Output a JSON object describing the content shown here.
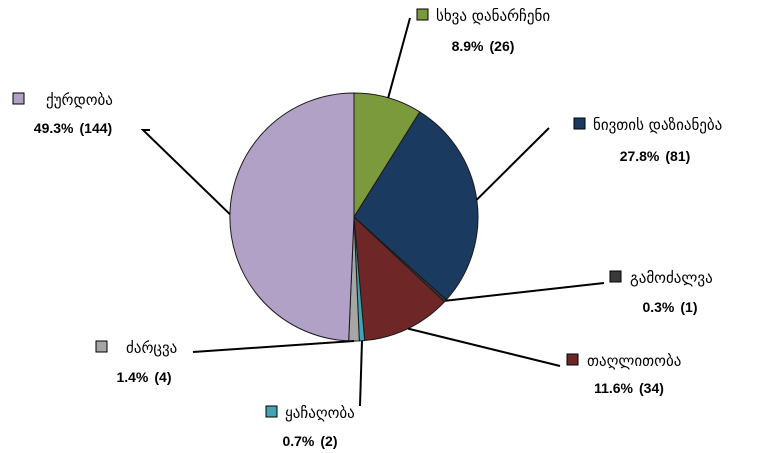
{
  "chart_data": {
    "type": "pie",
    "title": "",
    "start_angle_deg": -90,
    "direction": "clockwise",
    "slices": [
      {
        "label": "სხვა დანარჩენი",
        "percent": "8.9%",
        "count": "(26)",
        "value": 26,
        "color": "#7b9a3c"
      },
      {
        "label": "ნივთის დაზიანება",
        "percent": "27.8%",
        "count": "(81)",
        "value": 81,
        "color": "#1b3a5f"
      },
      {
        "label": "გამოძალვა",
        "percent": "0.3%",
        "count": "(1)",
        "value": 1,
        "color": "#3a3a3a"
      },
      {
        "label": "თაღლითობა",
        "percent": "11.6%",
        "count": "(34)",
        "value": 34,
        "color": "#6e2626"
      },
      {
        "label": "ყაჩაღობა",
        "percent": "0.7%",
        "count": "(2)",
        "value": 2,
        "color": "#43a3b5"
      },
      {
        "label": "ძარცვა",
        "percent": "1.4%",
        "count": "(4)",
        "value": 4,
        "color": "#a6a6a6"
      },
      {
        "label": "ქურდობა",
        "percent": "49.3%",
        "count": "(144)",
        "value": 144,
        "color": "#b2a1c7"
      }
    ]
  }
}
